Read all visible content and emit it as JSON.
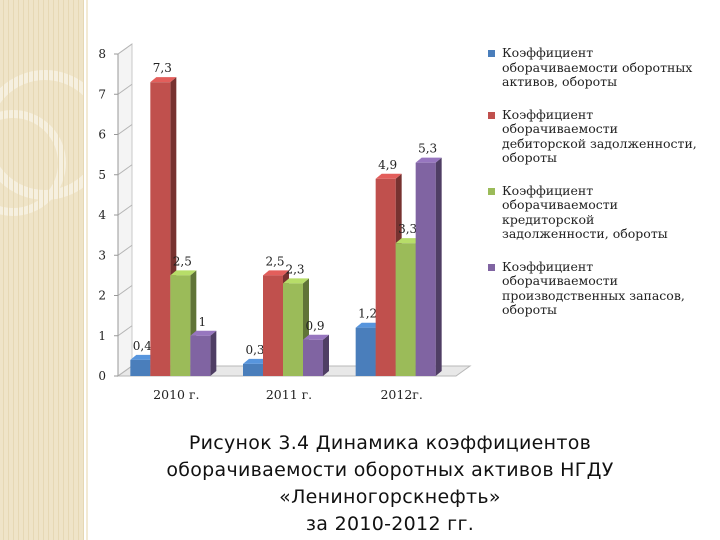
{
  "chart_data": {
    "type": "bar",
    "categories": [
      "2010 г.",
      "2011 г.",
      "2012г."
    ],
    "series": [
      {
        "name": "Коэффициент оборачиваемости оборотных активов, обороты",
        "values": [
          0.4,
          0.3,
          1.2
        ],
        "labels": [
          "0,4",
          "0,3",
          "1,2"
        ],
        "color": "#4a7ebb"
      },
      {
        "name": "Коэффициент оборачиваемости дебиторской задолженности, обороты",
        "values": [
          7.3,
          2.5,
          4.9
        ],
        "labels": [
          "7,3",
          "2,5",
          "4,9"
        ],
        "color": "#c0504d"
      },
      {
        "name": "Коэффициент оборачиваемости кредиторской задолженности, обороты",
        "values": [
          2.5,
          2.3,
          3.3
        ],
        "labels": [
          "2,5",
          "2,3",
          "3,3"
        ],
        "color": "#9bbb59"
      },
      {
        "name": "Коэффициент оборачиваемости производственных запасов, обороты",
        "values": [
          1,
          0.9,
          5.3
        ],
        "labels": [
          "1",
          "0,9",
          "5,3"
        ],
        "color": "#8064a2"
      }
    ],
    "yticks": [
      "0",
      "1",
      "2",
      "3",
      "4",
      "5",
      "6",
      "7",
      "8"
    ],
    "ylim": [
      0,
      8
    ],
    "legend_position": "right",
    "grid": false,
    "style": "3d"
  },
  "legend": {
    "items": [
      {
        "lines": [
          "Коэффициент",
          "оборачиваемости оборотных",
          "активов, обороты"
        ]
      },
      {
        "lines": [
          "Коэффициент",
          "оборачиваемости",
          "дебиторской задолженности,",
          "обороты"
        ]
      },
      {
        "lines": [
          "Коэффициент",
          "оборачиваемости",
          "кредиторской",
          "задолженности, обороты"
        ]
      },
      {
        "lines": [
          "Коэффициент",
          "оборачиваемости",
          "производственных запасов,",
          "обороты"
        ]
      }
    ]
  },
  "caption": {
    "lines": [
      "Рисунок 3.4 Динамика коэффициентов",
      "оборачиваемости оборотных активов НГДУ",
      "«Лениногорскнефть»",
      "за 2010-2012 гг."
    ]
  }
}
